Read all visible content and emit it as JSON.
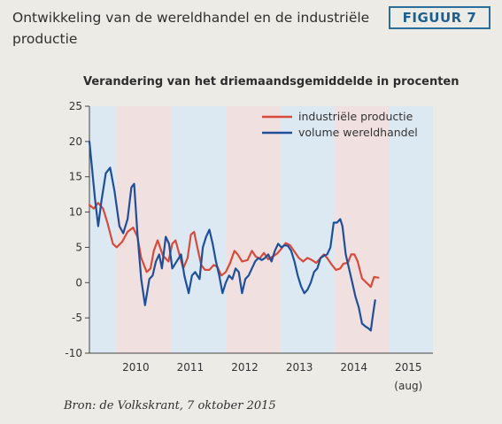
{
  "header": {
    "title": "Ontwikkeling van de wereldhandel en de industriële productie",
    "badge": "FIGUUR 7"
  },
  "footer": {
    "source": "Bron: de Volkskrant, 7 oktober 2015"
  },
  "colors": {
    "industry": "#d84a3a",
    "trade": "#1f4f9a",
    "stripe_light": "#dde9f2",
    "stripe_pink": "#f0e1e0"
  },
  "chart_data": {
    "type": "line",
    "title": "",
    "subtitle": "Verandering van het driemaandsgemiddelde in procenten",
    "xlabel": "",
    "ylabel": "",
    "ylim": [
      -10,
      25
    ],
    "yticks": [
      -10,
      -5,
      0,
      5,
      10,
      15,
      20,
      25
    ],
    "xlim": [
      2009.5,
      2015.8
    ],
    "xticks": [
      {
        "label": "2010",
        "x": 2010.0
      },
      {
        "label": "2011",
        "x": 2011.0
      },
      {
        "label": "2012",
        "x": 2012.0
      },
      {
        "label": "2013",
        "x": 2013.0
      },
      {
        "label": "2014",
        "x": 2014.0
      },
      {
        "label": "2015",
        "x": 2015.0
      }
    ],
    "xtick_note": "(aug)",
    "legend_position": "top-right",
    "grid": false,
    "series": [
      {
        "name": "industriële productie",
        "color": "#d84a3a",
        "points": [
          [
            2009.5,
            11.0
          ],
          [
            2009.58,
            10.5
          ],
          [
            2009.66,
            11.3
          ],
          [
            2009.75,
            10.5
          ],
          [
            2009.83,
            8.5
          ],
          [
            2009.93,
            5.5
          ],
          [
            2010.0,
            5.0
          ],
          [
            2010.1,
            5.8
          ],
          [
            2010.2,
            7.2
          ],
          [
            2010.3,
            7.8
          ],
          [
            2010.38,
            6.5
          ],
          [
            2010.45,
            3.5
          ],
          [
            2010.55,
            1.5
          ],
          [
            2010.62,
            2.0
          ],
          [
            2010.68,
            4.5
          ],
          [
            2010.75,
            6.0
          ],
          [
            2010.85,
            3.8
          ],
          [
            2010.95,
            3.0
          ],
          [
            2011.02,
            5.5
          ],
          [
            2011.08,
            6.0
          ],
          [
            2011.15,
            4.0
          ],
          [
            2011.22,
            2.0
          ],
          [
            2011.3,
            3.5
          ],
          [
            2011.36,
            6.8
          ],
          [
            2011.42,
            7.2
          ],
          [
            2011.48,
            5.0
          ],
          [
            2011.55,
            2.5
          ],
          [
            2011.62,
            1.8
          ],
          [
            2011.7,
            1.8
          ],
          [
            2011.78,
            2.5
          ],
          [
            2011.85,
            2.2
          ],
          [
            2011.92,
            1.0
          ],
          [
            2012.0,
            1.5
          ],
          [
            2012.08,
            2.8
          ],
          [
            2012.16,
            4.5
          ],
          [
            2012.22,
            4.0
          ],
          [
            2012.3,
            3.0
          ],
          [
            2012.4,
            3.2
          ],
          [
            2012.48,
            4.5
          ],
          [
            2012.55,
            3.7
          ],
          [
            2012.62,
            3.4
          ],
          [
            2012.7,
            4.2
          ],
          [
            2012.78,
            3.3
          ],
          [
            2012.86,
            3.7
          ],
          [
            2012.94,
            4.1
          ],
          [
            2013.02,
            4.8
          ],
          [
            2013.1,
            5.6
          ],
          [
            2013.18,
            5.3
          ],
          [
            2013.26,
            4.4
          ],
          [
            2013.34,
            3.5
          ],
          [
            2013.42,
            3.0
          ],
          [
            2013.5,
            3.5
          ],
          [
            2013.58,
            3.2
          ],
          [
            2013.66,
            2.8
          ],
          [
            2013.74,
            3.5
          ],
          [
            2013.8,
            4.0
          ],
          [
            2013.86,
            3.5
          ],
          [
            2013.94,
            2.6
          ],
          [
            2014.02,
            1.8
          ],
          [
            2014.1,
            2.0
          ],
          [
            2014.16,
            2.7
          ],
          [
            2014.24,
            2.8
          ],
          [
            2014.3,
            4.0
          ],
          [
            2014.36,
            4.0
          ],
          [
            2014.42,
            3.0
          ],
          [
            2014.5,
            0.6
          ],
          [
            2014.58,
            0.0
          ],
          [
            2014.66,
            -0.6
          ],
          [
            2014.72,
            0.8
          ],
          [
            2014.8,
            0.7
          ]
        ]
      },
      {
        "name": "volume wereldhandel",
        "color": "#1f4f9a",
        "points": [
          [
            2009.5,
            20.0
          ],
          [
            2009.6,
            12.0
          ],
          [
            2009.66,
            8.0
          ],
          [
            2009.72,
            11.5
          ],
          [
            2009.8,
            15.5
          ],
          [
            2009.88,
            16.3
          ],
          [
            2009.96,
            13.0
          ],
          [
            2010.05,
            8.0
          ],
          [
            2010.12,
            7.0
          ],
          [
            2010.2,
            9.0
          ],
          [
            2010.27,
            13.5
          ],
          [
            2010.32,
            14.0
          ],
          [
            2010.38,
            7.0
          ],
          [
            2010.45,
            0.5
          ],
          [
            2010.52,
            -3.2
          ],
          [
            2010.6,
            0.5
          ],
          [
            2010.66,
            1.0
          ],
          [
            2010.72,
            3.0
          ],
          [
            2010.78,
            4.0
          ],
          [
            2010.83,
            2.0
          ],
          [
            2010.9,
            6.5
          ],
          [
            2010.96,
            5.5
          ],
          [
            2011.02,
            2.0
          ],
          [
            2011.1,
            3.0
          ],
          [
            2011.18,
            4.0
          ],
          [
            2011.24,
            1.0
          ],
          [
            2011.32,
            -1.5
          ],
          [
            2011.38,
            1.0
          ],
          [
            2011.44,
            1.5
          ],
          [
            2011.52,
            0.5
          ],
          [
            2011.58,
            5.0
          ],
          [
            2011.64,
            6.5
          ],
          [
            2011.7,
            7.5
          ],
          [
            2011.76,
            5.5
          ],
          [
            2011.82,
            3.0
          ],
          [
            2011.88,
            1.0
          ],
          [
            2011.94,
            -1.5
          ],
          [
            2012.0,
            0.0
          ],
          [
            2012.06,
            1.0
          ],
          [
            2012.12,
            0.5
          ],
          [
            2012.18,
            2.0
          ],
          [
            2012.24,
            1.5
          ],
          [
            2012.3,
            -1.5
          ],
          [
            2012.36,
            0.5
          ],
          [
            2012.42,
            1.0
          ],
          [
            2012.48,
            2.0
          ],
          [
            2012.54,
            3.0
          ],
          [
            2012.6,
            3.5
          ],
          [
            2012.66,
            3.2
          ],
          [
            2012.72,
            3.5
          ],
          [
            2012.78,
            4.0
          ],
          [
            2012.84,
            3.0
          ],
          [
            2012.9,
            4.5
          ],
          [
            2012.96,
            5.5
          ],
          [
            2013.02,
            5.0
          ],
          [
            2013.08,
            5.3
          ],
          [
            2013.14,
            5.2
          ],
          [
            2013.2,
            4.5
          ],
          [
            2013.26,
            3.0
          ],
          [
            2013.32,
            1.0
          ],
          [
            2013.38,
            -0.5
          ],
          [
            2013.44,
            -1.5
          ],
          [
            2013.5,
            -1.0
          ],
          [
            2013.56,
            0.0
          ],
          [
            2013.62,
            1.5
          ],
          [
            2013.68,
            2.0
          ],
          [
            2013.74,
            3.5
          ],
          [
            2013.8,
            3.8
          ],
          [
            2013.86,
            4.0
          ],
          [
            2013.92,
            5.0
          ],
          [
            2013.98,
            8.5
          ],
          [
            2014.04,
            8.5
          ],
          [
            2014.1,
            9.0
          ],
          [
            2014.14,
            8.0
          ],
          [
            2014.2,
            4.0
          ],
          [
            2014.26,
            2.0
          ],
          [
            2014.32,
            0.0
          ],
          [
            2014.38,
            -2.0
          ],
          [
            2014.44,
            -3.5
          ],
          [
            2014.5,
            -5.8
          ],
          [
            2014.56,
            -6.2
          ],
          [
            2014.62,
            -6.5
          ],
          [
            2014.66,
            -6.8
          ],
          [
            2014.7,
            -4.5
          ],
          [
            2014.74,
            -2.5
          ]
        ]
      }
    ]
  }
}
